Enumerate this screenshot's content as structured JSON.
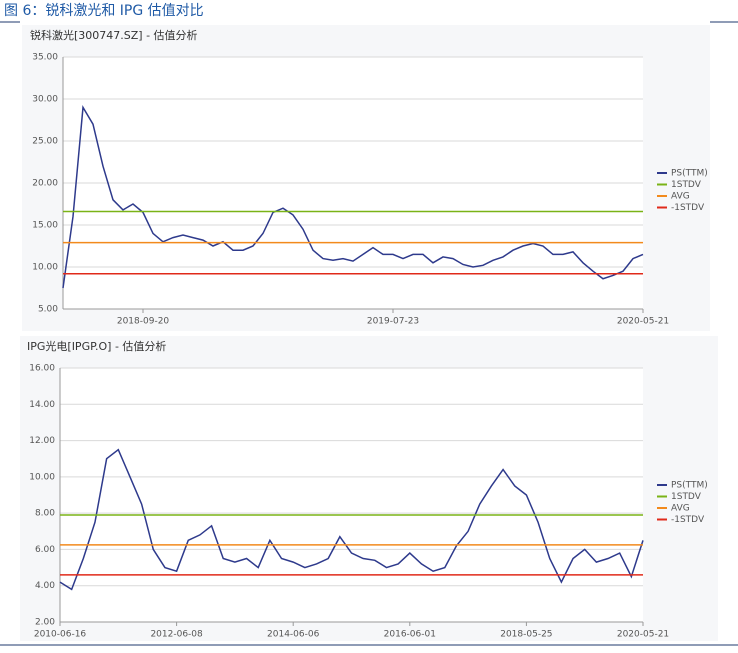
{
  "header": {
    "title": "图 6：锐科激光和 IPG 估值对比"
  },
  "chart_data": [
    {
      "type": "line",
      "title": "锐科激光[300747.SZ] - 估值分析",
      "categories": [
        null,
        null,
        null,
        null,
        null,
        null,
        null,
        null,
        "2018-09-20",
        null,
        null,
        null,
        null,
        null,
        null,
        null,
        null,
        null,
        null,
        null,
        null,
        null,
        null,
        null,
        null,
        null,
        null,
        null,
        null,
        null,
        null,
        null,
        null,
        "2019-07-23",
        null,
        null,
        null,
        null,
        null,
        null,
        null,
        null,
        null,
        null,
        null,
        null,
        null,
        null,
        null,
        null,
        null,
        null,
        null,
        null,
        null,
        null,
        null,
        null,
        "2020-05-21"
      ],
      "series": [
        {
          "name": "PS(TTM)",
          "color": "#2e3a8c",
          "values": [
            7.5,
            16,
            29,
            27,
            22,
            18,
            16.8,
            17.5,
            16.5,
            14,
            13,
            13.5,
            13.8,
            13.5,
            13.2,
            12.5,
            13,
            12,
            12,
            12.5,
            14,
            16.5,
            17,
            16.2,
            14.5,
            12,
            11,
            10.8,
            11,
            10.7,
            11.5,
            12.3,
            11.5,
            11.5,
            11,
            11.5,
            11.5,
            10.5,
            11.2,
            11,
            10.3,
            10,
            10.2,
            10.8,
            11.2,
            12,
            12.5,
            12.8,
            12.5,
            11.5,
            11.5,
            11.8,
            10.5,
            9.5,
            8.6,
            9,
            9.5,
            11,
            11.5
          ]
        },
        {
          "name": "1STDV",
          "color": "#7ab317",
          "value": 16.6
        },
        {
          "name": "AVG",
          "color": "#f28a1c",
          "value": 12.9
        },
        {
          "name": "-1STDV",
          "color": "#e02a1a",
          "value": 9.2
        }
      ],
      "ylim": [
        5,
        35
      ],
      "yticks": [
        {
          "value": 5,
          "label": "5.00"
        },
        {
          "value": 10,
          "label": "10.00"
        },
        {
          "value": 15,
          "label": "15.00"
        },
        {
          "value": 20,
          "label": "20.00"
        },
        {
          "value": 25,
          "label": "25.00"
        },
        {
          "value": 30,
          "label": "30.00"
        },
        {
          "value": 35,
          "label": "35.00"
        }
      ],
      "grid": true,
      "legend": "right"
    },
    {
      "type": "line",
      "title": "IPG光电[IPGP.O] - 估值分析",
      "categories": [
        "2010-06-16",
        null,
        null,
        null,
        null,
        null,
        null,
        null,
        null,
        null,
        "2012-06-08",
        null,
        null,
        null,
        null,
        null,
        null,
        null,
        null,
        null,
        "2014-06-06",
        null,
        null,
        null,
        null,
        null,
        null,
        null,
        null,
        null,
        "2016-06-01",
        null,
        null,
        null,
        null,
        null,
        null,
        null,
        null,
        null,
        "2018-05-25",
        null,
        null,
        null,
        null,
        null,
        null,
        null,
        null,
        null,
        "2020-05-21"
      ],
      "series": [
        {
          "name": "PS(TTM)",
          "color": "#2e3a8c",
          "values": [
            4.2,
            3.8,
            5.5,
            7.5,
            11,
            11.5,
            10,
            8.5,
            6,
            5,
            4.8,
            6.5,
            6.8,
            7.3,
            5.5,
            5.3,
            5.5,
            5,
            6.5,
            5.5,
            5.3,
            5,
            5.2,
            5.5,
            6.7,
            5.8,
            5.5,
            5.4,
            5,
            5.2,
            5.8,
            5.2,
            4.8,
            5,
            6.2,
            7,
            8.5,
            9.5,
            10.4,
            9.5,
            9,
            7.5,
            5.5,
            4.2,
            5.5,
            6,
            5.3,
            5.5,
            5.8,
            4.5,
            6.5
          ]
        },
        {
          "name": "1STDV",
          "color": "#7ab317",
          "value": 7.9
        },
        {
          "name": "AVG",
          "color": "#f28a1c",
          "value": 6.25
        },
        {
          "name": "-1STDV",
          "color": "#e02a1a",
          "value": 4.6
        }
      ],
      "ylim": [
        2,
        16
      ],
      "yticks": [
        {
          "value": 2,
          "label": "2.00"
        },
        {
          "value": 4,
          "label": "4.00"
        },
        {
          "value": 6,
          "label": "6.00"
        },
        {
          "value": 8,
          "label": "8.00"
        },
        {
          "value": 10,
          "label": "10.00"
        },
        {
          "value": 12,
          "label": "12.00"
        },
        {
          "value": 14,
          "label": "14.00"
        },
        {
          "value": 16,
          "label": "16.00"
        }
      ],
      "grid": true,
      "legend": "right"
    }
  ]
}
